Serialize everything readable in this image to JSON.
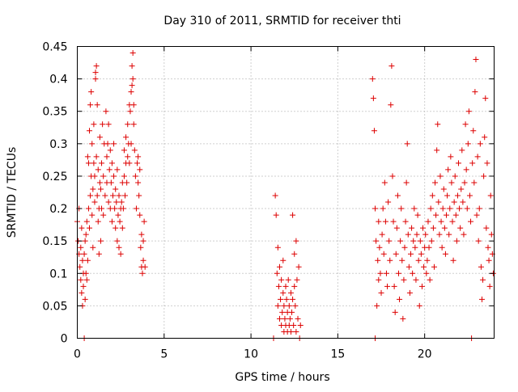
{
  "chart_data": {
    "type": "scatter",
    "title": "Day 310 of 2011, SRMTID for receiver thti",
    "xlabel": "GPS time / hours",
    "ylabel": "SRMTID / TECUs",
    "xlim": [
      0,
      24
    ],
    "ylim": [
      0,
      0.45
    ],
    "x_ticks": [
      0,
      5,
      10,
      15,
      20
    ],
    "x_tick_labels": [
      "0",
      "5",
      "10",
      "15",
      "20"
    ],
    "y_ticks": [
      0,
      0.05,
      0.1,
      0.15,
      0.2,
      0.25,
      0.3,
      0.35,
      0.4,
      0.45
    ],
    "y_tick_labels": [
      "0",
      "0.05",
      "0.1",
      "0.15",
      "0.2",
      "0.25",
      "0.3",
      "0.35",
      "0.4",
      "0.45"
    ],
    "grid": true,
    "marker": "plus",
    "color": "#dd0000",
    "series": [
      {
        "name": "SRMTID",
        "points": [
          [
            0.0,
            0.18
          ],
          [
            0.05,
            0.15
          ],
          [
            0.1,
            0.13
          ],
          [
            0.1,
            0.2
          ],
          [
            0.15,
            0.11
          ],
          [
            0.2,
            0.14
          ],
          [
            0.2,
            0.09
          ],
          [
            0.25,
            0.07
          ],
          [
            0.25,
            0.17
          ],
          [
            0.3,
            0.05
          ],
          [
            0.3,
            0.12
          ],
          [
            0.35,
            0.1
          ],
          [
            0.35,
            0.08
          ],
          [
            0.4,
            0.0
          ],
          [
            0.4,
            0.13
          ],
          [
            0.45,
            0.06
          ],
          [
            0.45,
            0.15
          ],
          [
            0.5,
            0.1
          ],
          [
            0.5,
            0.16
          ],
          [
            0.55,
            0.09
          ],
          [
            0.55,
            0.18
          ],
          [
            0.6,
            0.12
          ],
          [
            0.6,
            0.28
          ],
          [
            0.65,
            0.2
          ],
          [
            0.65,
            0.27
          ],
          [
            0.7,
            0.17
          ],
          [
            0.7,
            0.32
          ],
          [
            0.75,
            0.22
          ],
          [
            0.75,
            0.36
          ],
          [
            0.8,
            0.25
          ],
          [
            0.8,
            0.38
          ],
          [
            0.85,
            0.19
          ],
          [
            0.85,
            0.3
          ],
          [
            0.9,
            0.14
          ],
          [
            0.9,
            0.23
          ],
          [
            0.95,
            0.27
          ],
          [
            0.95,
            0.33
          ],
          [
            1.0,
            0.21
          ],
          [
            1.0,
            0.25
          ],
          [
            1.05,
            0.41
          ],
          [
            1.05,
            0.4
          ],
          [
            1.1,
            0.42
          ],
          [
            1.1,
            0.28
          ],
          [
            1.15,
            0.22
          ],
          [
            1.15,
            0.36
          ],
          [
            1.2,
            0.26
          ],
          [
            1.2,
            0.18
          ],
          [
            1.25,
            0.2
          ],
          [
            1.25,
            0.13
          ],
          [
            1.3,
            0.24
          ],
          [
            1.3,
            0.31
          ],
          [
            1.35,
            0.23
          ],
          [
            1.35,
            0.15
          ],
          [
            1.4,
            0.27
          ],
          [
            1.4,
            0.2
          ],
          [
            1.45,
            0.33
          ],
          [
            1.5,
            0.25
          ],
          [
            1.5,
            0.19
          ],
          [
            1.55,
            0.3
          ],
          [
            1.6,
            0.22
          ],
          [
            1.65,
            0.35
          ],
          [
            1.7,
            0.24
          ],
          [
            1.7,
            0.28
          ],
          [
            1.75,
            0.3
          ],
          [
            1.8,
            0.21
          ],
          [
            1.8,
            0.33
          ],
          [
            1.85,
            0.26
          ],
          [
            1.9,
            0.2
          ],
          [
            1.9,
            0.29
          ],
          [
            1.95,
            0.24
          ],
          [
            2.0,
            0.18
          ],
          [
            2.0,
            0.27
          ],
          [
            2.05,
            0.22
          ],
          [
            2.1,
            0.25
          ],
          [
            2.1,
            0.3
          ],
          [
            2.15,
            0.2
          ],
          [
            2.2,
            0.17
          ],
          [
            2.2,
            0.23
          ],
          [
            2.25,
            0.21
          ],
          [
            2.3,
            0.15
          ],
          [
            2.3,
            0.26
          ],
          [
            2.35,
            0.19
          ],
          [
            2.4,
            0.14
          ],
          [
            2.4,
            0.22
          ],
          [
            2.45,
            0.18
          ],
          [
            2.5,
            0.13
          ],
          [
            2.5,
            0.2
          ],
          [
            2.55,
            0.21
          ],
          [
            2.6,
            0.17
          ],
          [
            2.6,
            0.24
          ],
          [
            2.65,
            0.2
          ],
          [
            2.7,
            0.25
          ],
          [
            2.7,
            0.29
          ],
          [
            2.75,
            0.22
          ],
          [
            2.8,
            0.27
          ],
          [
            2.8,
            0.31
          ],
          [
            2.85,
            0.24
          ],
          [
            2.9,
            0.28
          ],
          [
            2.9,
            0.33
          ],
          [
            2.95,
            0.3
          ],
          [
            3.0,
            0.36
          ],
          [
            3.0,
            0.27
          ],
          [
            3.05,
            0.35
          ],
          [
            3.1,
            0.38
          ],
          [
            3.1,
            0.3
          ],
          [
            3.15,
            0.42
          ],
          [
            3.15,
            0.39
          ],
          [
            3.2,
            0.44
          ],
          [
            3.2,
            0.4
          ],
          [
            3.25,
            0.36
          ],
          [
            3.25,
            0.33
          ],
          [
            3.3,
            0.29
          ],
          [
            3.35,
            0.25
          ],
          [
            3.4,
            0.2
          ],
          [
            3.45,
            0.27
          ],
          [
            3.5,
            0.24
          ],
          [
            3.5,
            0.28
          ],
          [
            3.55,
            0.22
          ],
          [
            3.6,
            0.19
          ],
          [
            3.6,
            0.26
          ],
          [
            3.65,
            0.14
          ],
          [
            3.7,
            0.11
          ],
          [
            3.7,
            0.16
          ],
          [
            3.75,
            0.1
          ],
          [
            3.8,
            0.12
          ],
          [
            3.8,
            0.15
          ],
          [
            3.85,
            0.18
          ],
          [
            3.9,
            0.11
          ],
          [
            11.3,
            0.0
          ],
          [
            11.4,
            0.22
          ],
          [
            11.45,
            0.19
          ],
          [
            11.5,
            0.1
          ],
          [
            11.55,
            0.05
          ],
          [
            11.55,
            0.14
          ],
          [
            11.6,
            0.08
          ],
          [
            11.65,
            0.03
          ],
          [
            11.65,
            0.11
          ],
          [
            11.7,
            0.06
          ],
          [
            11.75,
            0.02
          ],
          [
            11.75,
            0.09
          ],
          [
            11.8,
            0.04
          ],
          [
            11.85,
            0.07
          ],
          [
            11.85,
            0.12
          ],
          [
            11.9,
            0.01
          ],
          [
            11.9,
            0.05
          ],
          [
            11.95,
            0.03
          ],
          [
            12.0,
            0.08
          ],
          [
            12.0,
            0.02
          ],
          [
            12.05,
            0.06
          ],
          [
            12.1,
            0.01
          ],
          [
            12.1,
            0.04
          ],
          [
            12.15,
            0.09
          ],
          [
            12.2,
            0.02
          ],
          [
            12.2,
            0.05
          ],
          [
            12.25,
            0.03
          ],
          [
            12.3,
            0.07
          ],
          [
            12.3,
            0.01
          ],
          [
            12.35,
            0.04
          ],
          [
            12.4,
            0.19
          ],
          [
            12.4,
            0.06
          ],
          [
            12.45,
            0.02
          ],
          [
            12.5,
            0.08
          ],
          [
            12.5,
            0.13
          ],
          [
            12.55,
            0.05
          ],
          [
            12.6,
            0.15
          ],
          [
            12.6,
            0.01
          ],
          [
            12.65,
            0.09
          ],
          [
            12.7,
            0.03
          ],
          [
            12.75,
            0.11
          ],
          [
            12.8,
            0.0
          ],
          [
            12.85,
            0.02
          ],
          [
            17.0,
            0.4
          ],
          [
            17.05,
            0.37
          ],
          [
            17.1,
            0.32
          ],
          [
            17.15,
            0.2
          ],
          [
            17.15,
            0.0
          ],
          [
            17.2,
            0.15
          ],
          [
            17.25,
            0.05
          ],
          [
            17.3,
            0.12
          ],
          [
            17.35,
            0.09
          ],
          [
            17.35,
            0.18
          ],
          [
            17.4,
            0.14
          ],
          [
            17.45,
            0.1
          ],
          [
            17.5,
            0.07
          ],
          [
            17.55,
            0.16
          ],
          [
            17.6,
            0.2
          ],
          [
            17.65,
            0.13
          ],
          [
            17.7,
            0.24
          ],
          [
            17.75,
            0.18
          ],
          [
            17.8,
            0.1
          ],
          [
            17.85,
            0.08
          ],
          [
            17.9,
            0.21
          ],
          [
            17.95,
            0.15
          ],
          [
            18.0,
            0.12
          ],
          [
            18.05,
            0.36
          ],
          [
            18.1,
            0.42
          ],
          [
            18.15,
            0.25
          ],
          [
            18.2,
            0.18
          ],
          [
            18.25,
            0.08
          ],
          [
            18.3,
            0.04
          ],
          [
            18.35,
            0.13
          ],
          [
            18.4,
            0.17
          ],
          [
            18.45,
            0.22
          ],
          [
            18.5,
            0.1
          ],
          [
            18.55,
            0.06
          ],
          [
            18.6,
            0.15
          ],
          [
            18.65,
            0.2
          ],
          [
            18.7,
            0.12
          ],
          [
            18.75,
            0.03
          ],
          [
            18.8,
            0.09
          ],
          [
            18.85,
            0.14
          ],
          [
            18.9,
            0.18
          ],
          [
            18.95,
            0.24
          ],
          [
            19.0,
            0.3
          ],
          [
            19.05,
            0.16
          ],
          [
            19.1,
            0.11
          ],
          [
            19.15,
            0.07
          ],
          [
            19.2,
            0.13
          ],
          [
            19.25,
            0.17
          ],
          [
            19.3,
            0.1
          ],
          [
            19.35,
            0.15
          ],
          [
            19.4,
            0.2
          ],
          [
            19.45,
            0.14
          ],
          [
            19.5,
            0.09
          ],
          [
            19.55,
            0.16
          ],
          [
            19.6,
            0.19
          ],
          [
            19.65,
            0.12
          ],
          [
            19.7,
            0.05
          ],
          [
            19.75,
            0.15
          ],
          [
            19.8,
            0.13
          ],
          [
            19.85,
            0.08
          ],
          [
            19.9,
            0.17
          ],
          [
            19.95,
            0.11
          ],
          [
            20.0,
            0.14
          ],
          [
            20.05,
            0.16
          ],
          [
            20.1,
            0.1
          ],
          [
            20.15,
            0.12
          ],
          [
            20.2,
            0.18
          ],
          [
            20.25,
            0.14
          ],
          [
            20.3,
            0.09
          ],
          [
            20.35,
            0.2
          ],
          [
            20.4,
            0.15
          ],
          [
            20.45,
            0.22
          ],
          [
            20.5,
            0.17
          ],
          [
            20.55,
            0.11
          ],
          [
            20.6,
            0.24
          ],
          [
            20.65,
            0.19
          ],
          [
            20.7,
            0.29
          ],
          [
            20.75,
            0.33
          ],
          [
            20.8,
            0.21
          ],
          [
            20.85,
            0.16
          ],
          [
            20.9,
            0.25
          ],
          [
            20.95,
            0.18
          ],
          [
            21.0,
            0.14
          ],
          [
            21.05,
            0.2
          ],
          [
            21.1,
            0.23
          ],
          [
            21.15,
            0.17
          ],
          [
            21.2,
            0.13
          ],
          [
            21.25,
            0.19
          ],
          [
            21.3,
            0.22
          ],
          [
            21.35,
            0.26
          ],
          [
            21.4,
            0.16
          ],
          [
            21.45,
            0.2
          ],
          [
            21.5,
            0.28
          ],
          [
            21.55,
            0.24
          ],
          [
            21.6,
            0.18
          ],
          [
            21.65,
            0.12
          ],
          [
            21.7,
            0.21
          ],
          [
            21.75,
            0.25
          ],
          [
            21.8,
            0.19
          ],
          [
            21.85,
            0.15
          ],
          [
            21.9,
            0.22
          ],
          [
            21.95,
            0.27
          ],
          [
            22.0,
            0.2
          ],
          [
            22.05,
            0.17
          ],
          [
            22.1,
            0.23
          ],
          [
            22.15,
            0.29
          ],
          [
            22.2,
            0.21
          ],
          [
            22.25,
            0.16
          ],
          [
            22.3,
            0.24
          ],
          [
            22.35,
            0.33
          ],
          [
            22.4,
            0.26
          ],
          [
            22.45,
            0.2
          ],
          [
            22.5,
            0.3
          ],
          [
            22.55,
            0.35
          ],
          [
            22.6,
            0.22
          ],
          [
            22.65,
            0.18
          ],
          [
            22.7,
            0.0
          ],
          [
            22.75,
            0.27
          ],
          [
            22.8,
            0.32
          ],
          [
            22.85,
            0.24
          ],
          [
            22.9,
            0.38
          ],
          [
            22.95,
            0.43
          ],
          [
            23.0,
            0.19
          ],
          [
            23.05,
            0.28
          ],
          [
            23.1,
            0.15
          ],
          [
            23.15,
            0.2
          ],
          [
            23.2,
            0.3
          ],
          [
            23.25,
            0.11
          ],
          [
            23.3,
            0.06
          ],
          [
            23.35,
            0.09
          ],
          [
            23.4,
            0.25
          ],
          [
            23.45,
            0.31
          ],
          [
            23.5,
            0.37
          ],
          [
            23.55,
            0.17
          ],
          [
            23.6,
            0.27
          ],
          [
            23.65,
            0.14
          ],
          [
            23.7,
            0.12
          ],
          [
            23.75,
            0.08
          ],
          [
            23.8,
            0.22
          ],
          [
            23.85,
            0.16
          ],
          [
            23.9,
            0.13
          ],
          [
            23.95,
            0.1
          ]
        ]
      }
    ]
  }
}
